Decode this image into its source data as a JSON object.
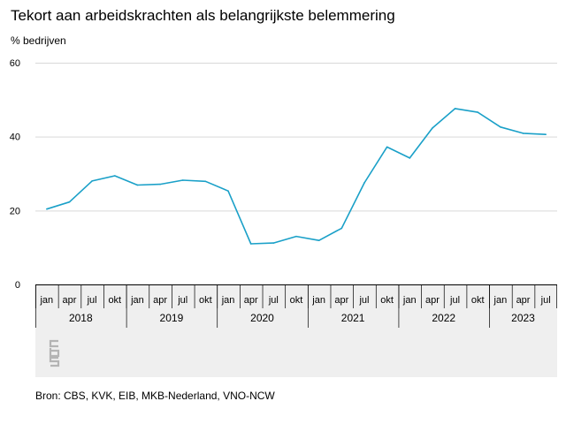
{
  "title": "Tekort aan arbeidskrachten als belangrijkste belemmering",
  "source": "Bron: CBS, KVK, EIB, MKB-Nederland, VNO-NCW",
  "logo_icon": "cbs-logo-icon",
  "colors": {
    "line": "#1aa0c8",
    "grid": "#d9d9d9",
    "band": "#efefef",
    "logo": "#b4b4b4"
  },
  "chart_data": {
    "type": "line",
    "title": "Tekort aan arbeidskrachten als belangrijkste belemmering",
    "ylabel": "% bedrijven",
    "xlabel": "",
    "ylim": [
      0,
      60
    ],
    "yticks": [
      0,
      20,
      40,
      60
    ],
    "grid": true,
    "legend": "none",
    "years": [
      "2018",
      "2019",
      "2020",
      "2021",
      "2022",
      "2023"
    ],
    "categories": [
      "jan",
      "apr",
      "jul",
      "okt",
      "jan",
      "apr",
      "jul",
      "okt",
      "jan",
      "apr",
      "jul",
      "okt",
      "jan",
      "apr",
      "jul",
      "okt",
      "jan",
      "apr",
      "jul",
      "okt",
      "jan",
      "apr",
      "jul"
    ],
    "series": [
      {
        "values": [
          20.4,
          22.3,
          28.0,
          29.4,
          26.9,
          27.1,
          28.2,
          27.9,
          25.3,
          11.0,
          11.2,
          13.0,
          11.9,
          15.2,
          27.5,
          37.2,
          34.2,
          42.3,
          47.6,
          46.6,
          42.6,
          40.9,
          40.6
        ]
      }
    ]
  }
}
